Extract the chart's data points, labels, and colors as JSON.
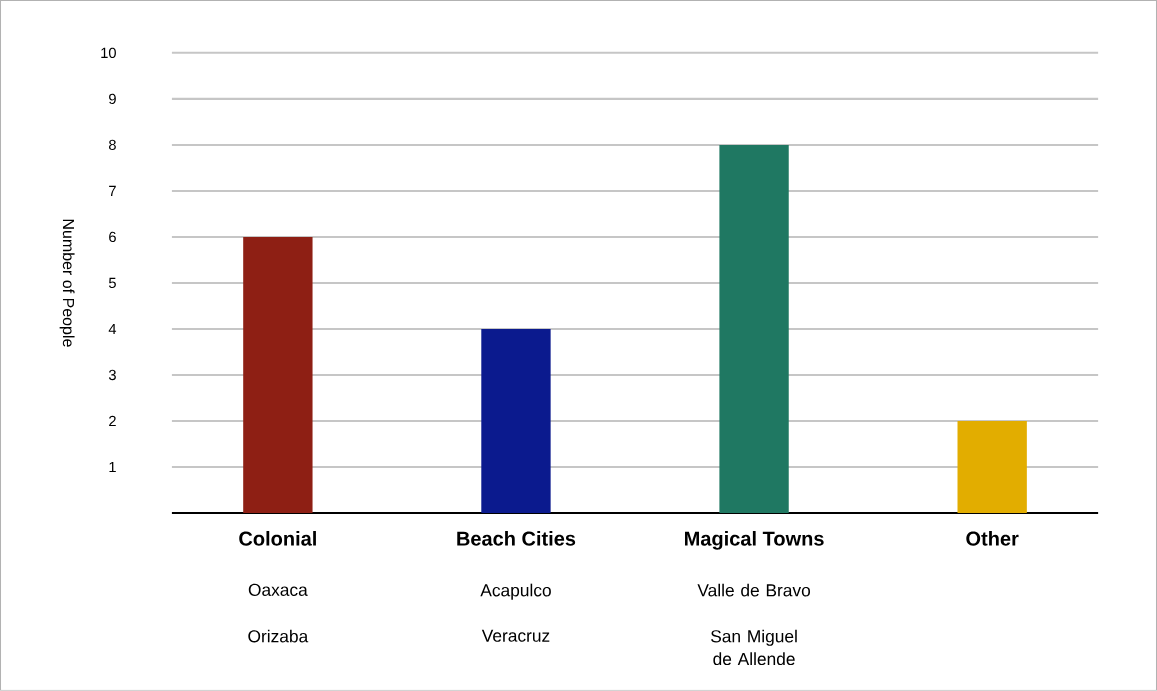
{
  "chart_data": {
    "type": "bar",
    "ylabel": "Number of People",
    "categories": [
      "Colonial",
      "Beach Cities",
      "Magical Towns",
      "Other"
    ],
    "values": [
      6,
      4,
      8,
      2
    ],
    "colors": [
      "#8e1f14",
      "#0b1a8e",
      "#1f7862",
      "#e2ad00"
    ],
    "ylim": [
      0,
      10
    ],
    "yticks": [
      1,
      2,
      3,
      4,
      5,
      6,
      7,
      8,
      9,
      10
    ],
    "grid": "y",
    "annotations": [
      "Oaxaca",
      "Orizaba",
      "Acapulco",
      "Veracruz",
      "Valle de Bravo",
      "San Miguel de Allende"
    ]
  }
}
